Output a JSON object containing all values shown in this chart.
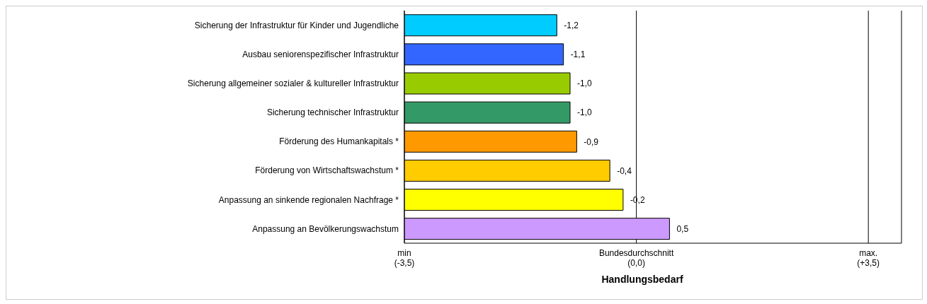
{
  "chart_data": {
    "type": "bar",
    "orientation": "horizontal",
    "xlabel": "Handlungsbedarf",
    "categories": [
      "Sicherung der Infrastruktur für Kinder und Jugendliche",
      "Ausbau seniorenspezifischer Infrastruktur",
      "Sicherung allgemeiner sozialer & kultureller Infrastruktur",
      "Sicherung technischer Infrastruktur",
      "Förderung des Humankapitals *",
      "Förderung von Wirtschaftswachstum *",
      "Anpassung an sinkende regionalen Nachfrage *",
      "Anpassung an Bevölkerungswachstum"
    ],
    "base": [
      -3.5,
      -3.5,
      -3.5,
      -3.5,
      -3.5,
      -3.5,
      -3.5,
      -3.5
    ],
    "values": [
      2.3,
      2.4,
      2.5,
      2.5,
      2.6,
      3.1,
      3.3,
      4.0
    ],
    "value_labels": [
      "-1,2",
      "-1,1",
      "-1,0",
      "-1,0",
      "-0,9",
      "-0,4",
      "-0,2",
      "0,5"
    ],
    "colors": [
      "#00ccff",
      "#3366ff",
      "#99cc00",
      "#339966",
      "#ff9900",
      "#ffcc00",
      "#ffff00",
      "#cc99ff"
    ],
    "xlim": [
      -3.5,
      4.0
    ],
    "xticks": [
      {
        "value": -3.5,
        "label": "min\n(-3,5)"
      },
      {
        "value": 0,
        "label": "Bundesdurchschnitt\n(0,0)"
      },
      {
        "value": 3.5,
        "label": "max.\n(+3,5)"
      }
    ],
    "grid": "x"
  }
}
